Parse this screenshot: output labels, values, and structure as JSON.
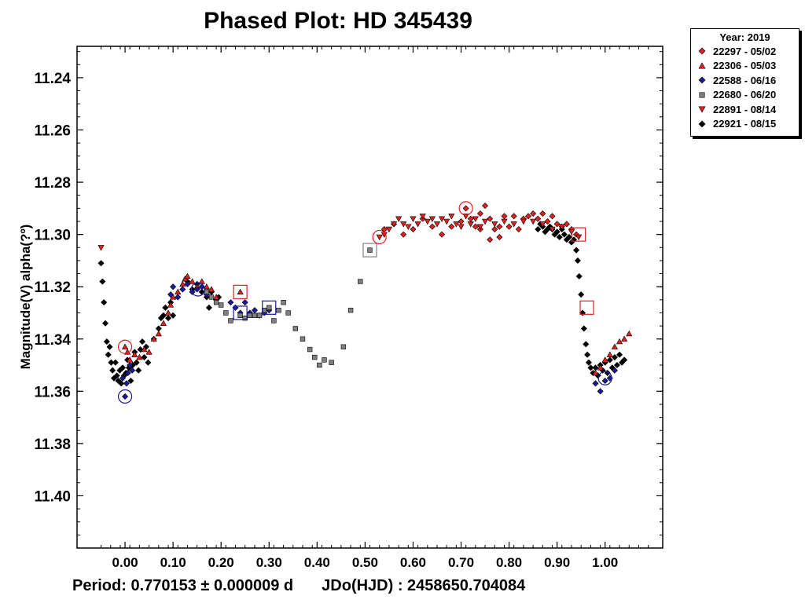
{
  "chart_data": {
    "type": "scatter",
    "title": "Phased Plot: HD 345439",
    "ylabel": "Magnitude(V) alpha(?º)",
    "footer": {
      "period": "Period: 0.770153 ± 0.000009 d",
      "epoch": "JDo(HJD) : 2458650.704084"
    },
    "xlim": [
      -0.1,
      1.12
    ],
    "ylim": [
      11.42,
      11.228
    ],
    "y_inverted": true,
    "x_ticks": [
      "0.00",
      "0.10",
      "0.20",
      "0.30",
      "0.40",
      "0.50",
      "0.60",
      "0.70",
      "0.80",
      "0.90",
      "1.00"
    ],
    "y_ticks": [
      "11.24",
      "11.26",
      "11.28",
      "11.30",
      "11.32",
      "11.34",
      "11.36",
      "11.38",
      "11.40"
    ],
    "legend": {
      "title": "Year: 2019",
      "placement": "outside-top-right",
      "entries": [
        {
          "label": "22297 - 05/02",
          "marker": "diamond",
          "color": "#e02020"
        },
        {
          "label": "22306 - 05/03",
          "marker": "triangle-up",
          "color": "#e02020"
        },
        {
          "label": "22588 - 06/16",
          "marker": "diamond",
          "color": "#1a1a9a"
        },
        {
          "label": "22680 - 06/20",
          "marker": "square",
          "color": "#808080"
        },
        {
          "label": "22891 - 08/14",
          "marker": "triangle-down",
          "color": "#e02020"
        },
        {
          "label": "22921 - 08/15",
          "marker": "diamond",
          "color": "#000000"
        }
      ]
    },
    "series": [
      {
        "name": "22921 - 08/15",
        "marker": "diamond",
        "color": "#000000",
        "points": [
          [
            -0.05,
            11.311
          ],
          [
            -0.047,
            11.318
          ],
          [
            -0.044,
            11.326
          ],
          [
            -0.041,
            11.334
          ],
          [
            -0.038,
            11.341
          ],
          [
            -0.035,
            11.346
          ],
          [
            -0.032,
            11.343
          ],
          [
            -0.029,
            11.349
          ],
          [
            -0.026,
            11.352
          ],
          [
            -0.023,
            11.355
          ],
          [
            -0.02,
            11.349
          ],
          [
            -0.017,
            11.354
          ],
          [
            -0.014,
            11.356
          ],
          [
            -0.011,
            11.352
          ],
          [
            -0.008,
            11.357
          ],
          [
            -0.005,
            11.351
          ],
          [
            -0.002,
            11.354
          ],
          [
            0.002,
            11.353
          ],
          [
            0.005,
            11.348
          ],
          [
            0.008,
            11.351
          ],
          [
            0.012,
            11.356
          ],
          [
            0.016,
            11.35
          ],
          [
            0.02,
            11.345
          ],
          [
            0.024,
            11.349
          ],
          [
            0.028,
            11.352
          ],
          [
            0.032,
            11.344
          ],
          [
            0.036,
            11.341
          ],
          [
            0.04,
            11.347
          ],
          [
            0.044,
            11.343
          ],
          [
            0.048,
            11.349
          ],
          [
            0.06,
            11.34
          ],
          [
            0.07,
            11.336
          ],
          [
            0.075,
            11.332
          ],
          [
            0.08,
            11.331
          ],
          [
            0.084,
            11.328
          ],
          [
            0.09,
            11.332
          ],
          [
            0.095,
            11.326
          ],
          [
            0.1,
            11.331
          ],
          [
            0.13,
            11.318
          ],
          [
            0.14,
            11.321
          ],
          [
            0.15,
            11.319
          ],
          [
            0.16,
            11.322
          ],
          [
            0.17,
            11.324
          ],
          [
            0.175,
            11.328
          ],
          [
            0.18,
            11.322
          ],
          [
            0.19,
            11.325
          ],
          [
            0.195,
            11.324
          ],
          [
            0.86,
            11.298
          ],
          [
            0.865,
            11.296
          ],
          [
            0.87,
            11.297
          ],
          [
            0.875,
            11.299
          ],
          [
            0.88,
            11.298
          ],
          [
            0.885,
            11.297
          ],
          [
            0.89,
            11.298
          ],
          [
            0.895,
            11.3
          ],
          [
            0.9,
            11.299
          ],
          [
            0.905,
            11.301
          ],
          [
            0.91,
            11.298
          ],
          [
            0.915,
            11.3
          ],
          [
            0.92,
            11.302
          ],
          [
            0.925,
            11.301
          ],
          [
            0.93,
            11.303
          ],
          [
            0.935,
            11.302
          ],
          [
            0.94,
            11.306
          ],
          [
            0.943,
            11.31
          ],
          [
            0.946,
            11.316
          ],
          [
            0.95,
            11.323
          ],
          [
            0.953,
            11.33
          ],
          [
            0.956,
            11.336
          ],
          [
            0.96,
            11.342
          ],
          [
            0.963,
            11.346
          ],
          [
            0.966,
            11.349
          ],
          [
            0.97,
            11.351
          ],
          [
            0.975,
            11.353
          ],
          [
            0.98,
            11.351
          ],
          [
            0.985,
            11.354
          ],
          [
            0.99,
            11.35
          ],
          [
            0.995,
            11.352
          ],
          [
            1.0,
            11.349
          ],
          [
            1.005,
            11.353
          ],
          [
            1.01,
            11.348
          ],
          [
            1.015,
            11.351
          ],
          [
            1.02,
            11.347
          ],
          [
            1.025,
            11.35
          ],
          [
            1.03,
            11.346
          ],
          [
            1.035,
            11.349
          ],
          [
            1.04,
            11.348
          ]
        ]
      },
      {
        "name": "22297 - 05/02",
        "marker": "diamond",
        "color": "#e02020",
        "points": [
          [
            0.54,
            11.298
          ],
          [
            0.56,
            11.296
          ],
          [
            0.58,
            11.3
          ],
          [
            0.6,
            11.298
          ],
          [
            0.62,
            11.294
          ],
          [
            0.64,
            11.297
          ],
          [
            0.66,
            11.3
          ],
          [
            0.68,
            11.297
          ],
          [
            0.7,
            11.295
          ],
          [
            0.71,
            11.29
          ],
          [
            0.72,
            11.294
          ],
          [
            0.73,
            11.297
          ],
          [
            0.74,
            11.292
          ],
          [
            0.75,
            11.289
          ],
          [
            0.76,
            11.294
          ],
          [
            0.77,
            11.298
          ],
          [
            0.78,
            11.297
          ],
          [
            0.79,
            11.293
          ],
          [
            0.8,
            11.297
          ],
          [
            0.81,
            11.293
          ],
          [
            0.82,
            11.298
          ],
          [
            0.83,
            11.294
          ],
          [
            0.84,
            11.293
          ],
          [
            0.85,
            11.292
          ],
          [
            0.86,
            11.294
          ],
          [
            0.87,
            11.292
          ],
          [
            0.88,
            11.295
          ],
          [
            0.89,
            11.293
          ],
          [
            0.9,
            11.296
          ],
          [
            0.91,
            11.297
          ],
          [
            0.92,
            11.296
          ],
          [
            0.93,
            11.298
          ],
          [
            0.94,
            11.3
          ],
          [
            0.74,
            11.298
          ],
          [
            0.78,
            11.301
          ],
          [
            0.76,
            11.302
          ]
        ]
      },
      {
        "name": "22306 - 05/03",
        "marker": "triangle-up",
        "color": "#e02020",
        "points": [
          [
            0.0,
            11.343
          ],
          [
            0.005,
            11.345
          ],
          [
            0.01,
            11.348
          ],
          [
            0.02,
            11.346
          ],
          [
            0.03,
            11.347
          ],
          [
            0.04,
            11.344
          ],
          [
            0.05,
            11.345
          ],
          [
            0.06,
            11.34
          ],
          [
            0.07,
            11.338
          ],
          [
            0.08,
            11.334
          ],
          [
            0.09,
            11.33
          ],
          [
            0.095,
            11.327
          ],
          [
            0.1,
            11.324
          ],
          [
            0.11,
            11.322
          ],
          [
            0.12,
            11.319
          ],
          [
            0.125,
            11.317
          ],
          [
            0.13,
            11.316
          ],
          [
            0.14,
            11.318
          ],
          [
            0.15,
            11.32
          ],
          [
            0.16,
            11.318
          ],
          [
            0.17,
            11.32
          ],
          [
            0.18,
            11.321
          ],
          [
            0.19,
            11.324
          ],
          [
            0.24,
            11.322
          ],
          [
            0.98,
            11.353
          ],
          [
            0.99,
            11.351
          ],
          [
            1.0,
            11.348
          ],
          [
            1.01,
            11.346
          ],
          [
            1.02,
            11.343
          ],
          [
            1.03,
            11.341
          ],
          [
            1.04,
            11.34
          ],
          [
            1.05,
            11.338
          ]
        ]
      },
      {
        "name": "22588 - 06/16",
        "marker": "diamond",
        "color": "#1a1a9a",
        "points": [
          [
            -0.005,
            11.355
          ],
          [
            0.0,
            11.362
          ],
          [
            0.003,
            11.357
          ],
          [
            0.006,
            11.353
          ],
          [
            0.01,
            11.35
          ],
          [
            0.015,
            11.352
          ],
          [
            0.095,
            11.323
          ],
          [
            0.1,
            11.32
          ],
          [
            0.11,
            11.324
          ],
          [
            0.12,
            11.321
          ],
          [
            0.13,
            11.319
          ],
          [
            0.14,
            11.322
          ],
          [
            0.15,
            11.321
          ],
          [
            0.16,
            11.32
          ],
          [
            0.17,
            11.323
          ],
          [
            0.22,
            11.326
          ],
          [
            0.23,
            11.328
          ],
          [
            0.24,
            11.33
          ],
          [
            0.25,
            11.326
          ],
          [
            0.26,
            11.33
          ],
          [
            0.27,
            11.329
          ],
          [
            0.28,
            11.331
          ],
          [
            0.29,
            11.33
          ],
          [
            0.3,
            11.329
          ],
          [
            0.98,
            11.357
          ],
          [
            0.99,
            11.36
          ],
          [
            1.0,
            11.356
          ],
          [
            1.01,
            11.355
          ],
          [
            1.02,
            11.352
          ]
        ]
      },
      {
        "name": "22680 - 06/20",
        "marker": "square",
        "color": "#808080",
        "points": [
          [
            0.17,
            11.322
          ],
          [
            0.18,
            11.324
          ],
          [
            0.19,
            11.326
          ],
          [
            0.2,
            11.327
          ],
          [
            0.21,
            11.33
          ],
          [
            0.22,
            11.333
          ],
          [
            0.24,
            11.331
          ],
          [
            0.25,
            11.332
          ],
          [
            0.26,
            11.331
          ],
          [
            0.27,
            11.331
          ],
          [
            0.28,
            11.331
          ],
          [
            0.29,
            11.329
          ],
          [
            0.3,
            11.328
          ],
          [
            0.31,
            11.333
          ],
          [
            0.32,
            11.329
          ],
          [
            0.33,
            11.326
          ],
          [
            0.34,
            11.33
          ],
          [
            0.355,
            11.336
          ],
          [
            0.37,
            11.34
          ],
          [
            0.385,
            11.344
          ],
          [
            0.395,
            11.347
          ],
          [
            0.405,
            11.35
          ],
          [
            0.415,
            11.348
          ],
          [
            0.43,
            11.349
          ],
          [
            0.455,
            11.343
          ],
          [
            0.47,
            11.329
          ],
          [
            0.49,
            11.318
          ],
          [
            0.51,
            11.306
          ]
        ]
      },
      {
        "name": "22891 - 08/14",
        "marker": "triangle-down",
        "color": "#e02020",
        "points": [
          [
            -0.05,
            11.305
          ],
          [
            0.53,
            11.301
          ],
          [
            0.54,
            11.3
          ],
          [
            0.55,
            11.298
          ],
          [
            0.56,
            11.296
          ],
          [
            0.57,
            11.294
          ],
          [
            0.58,
            11.296
          ],
          [
            0.59,
            11.297
          ],
          [
            0.6,
            11.294
          ],
          [
            0.61,
            11.296
          ],
          [
            0.62,
            11.293
          ],
          [
            0.63,
            11.295
          ],
          [
            0.64,
            11.294
          ],
          [
            0.65,
            11.296
          ],
          [
            0.66,
            11.294
          ],
          [
            0.67,
            11.295
          ],
          [
            0.68,
            11.293
          ],
          [
            0.69,
            11.296
          ],
          [
            0.7,
            11.297
          ],
          [
            0.71,
            11.293
          ],
          [
            0.72,
            11.296
          ],
          [
            0.73,
            11.294
          ],
          [
            0.74,
            11.297
          ],
          [
            0.75,
            11.295
          ],
          [
            0.77,
            11.296
          ],
          [
            0.79,
            11.295
          ],
          [
            0.81,
            11.296
          ],
          [
            0.83,
            11.295
          ],
          [
            0.85,
            11.295
          ],
          [
            0.87,
            11.296
          ],
          [
            0.89,
            11.298
          ],
          [
            0.91,
            11.297
          ],
          [
            0.93,
            11.299
          ],
          [
            0.945,
            11.301
          ]
        ]
      }
    ],
    "highlights": [
      {
        "x": 0.0,
        "y": 11.343,
        "shape": "circle",
        "color": "#e02020"
      },
      {
        "x": 0.0,
        "y": 11.362,
        "shape": "circle",
        "color": "#1a1a9a"
      },
      {
        "x": 0.152,
        "y": 11.321,
        "shape": "circle",
        "color": "#1a1a9a"
      },
      {
        "x": 0.24,
        "y": 11.322,
        "shape": "square",
        "color": "#e02020"
      },
      {
        "x": 0.24,
        "y": 11.33,
        "shape": "square",
        "color": "#1a1a9a"
      },
      {
        "x": 0.3,
        "y": 11.328,
        "shape": "square",
        "color": "#1a1a9a"
      },
      {
        "x": 0.51,
        "y": 11.306,
        "shape": "square",
        "color": "#808080"
      },
      {
        "x": 0.53,
        "y": 11.301,
        "shape": "circle",
        "color": "#e02020"
      },
      {
        "x": 0.71,
        "y": 11.29,
        "shape": "circle",
        "color": "#e02020"
      },
      {
        "x": 0.945,
        "y": 11.3,
        "shape": "square",
        "color": "#e02020"
      },
      {
        "x": 0.962,
        "y": 11.328,
        "shape": "square",
        "color": "#e02020"
      },
      {
        "x": 1.0,
        "y": 11.355,
        "shape": "circle",
        "color": "#1a1a9a"
      }
    ]
  }
}
